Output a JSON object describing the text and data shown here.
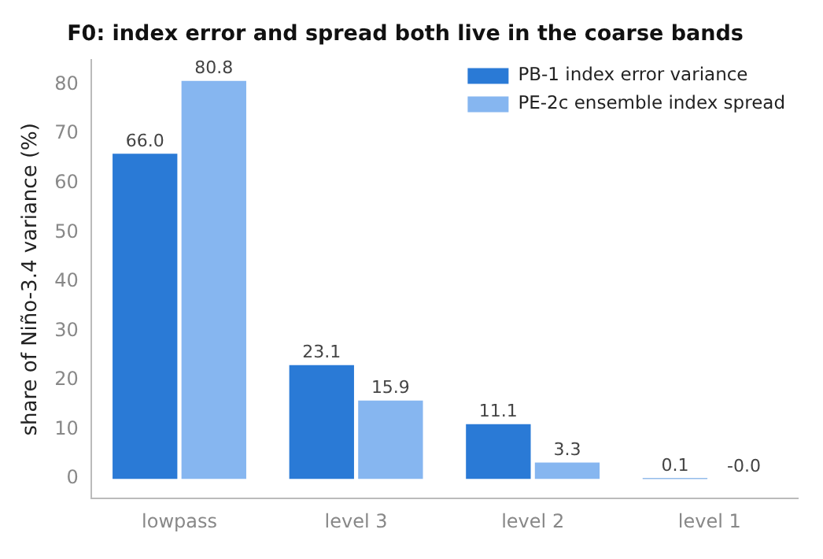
{
  "chart_data": {
    "type": "bar",
    "title": "F0: index error and spread both live in the coarse bands",
    "ylabel": "share of Niño-3.4 variance (%)",
    "categories": [
      "lowpass",
      "level 3",
      "level 2",
      "level 1"
    ],
    "series": [
      {
        "name": "PB-1 index error variance",
        "color": "#2a7ad6",
        "values": [
          66.0,
          23.1,
          11.1,
          0.1
        ],
        "value_labels": [
          "66.0",
          "23.1",
          "11.1",
          "0.1"
        ]
      },
      {
        "name": "PE-2c ensemble index spread",
        "color": "#86b6f0",
        "values": [
          80.8,
          15.9,
          3.3,
          -0.02
        ],
        "value_labels": [
          "80.8",
          "15.9",
          "3.3",
          "-0.0"
        ]
      }
    ],
    "ylim": [
      -4,
      85
    ],
    "yticks": [
      0,
      10,
      20,
      30,
      40,
      50,
      60,
      70,
      80
    ],
    "grid": false,
    "legend": "top right"
  }
}
